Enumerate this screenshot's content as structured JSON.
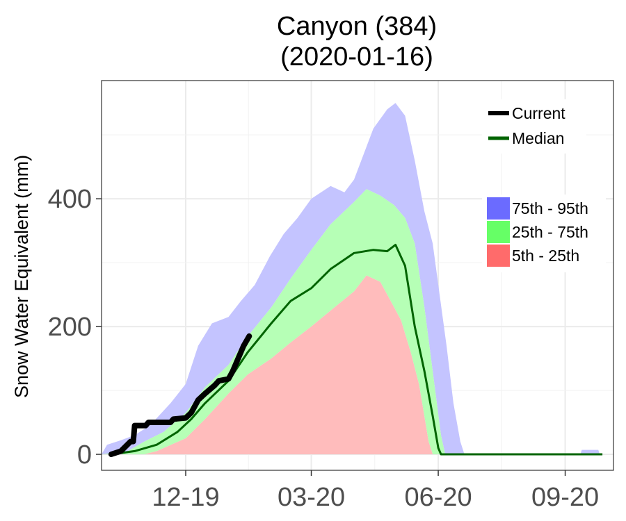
{
  "chart_data": {
    "type": "area",
    "title": "Canyon (384)",
    "subtitle": "(2020-01-16)",
    "xlabel": "",
    "ylabel": "Snow Water Equivalent (mm)",
    "ylim": [
      -25,
      585
    ],
    "xlim": [
      "2019-10-01",
      "2020-10-06"
    ],
    "x_ticks": [
      {
        "date": "2019-12-01",
        "label": "12-19"
      },
      {
        "date": "2020-03-01",
        "label": "03-20"
      },
      {
        "date": "2020-06-01",
        "label": "06-20"
      },
      {
        "date": "2020-09-01",
        "label": "09-20"
      }
    ],
    "y_ticks": [
      0,
      200,
      400
    ],
    "grid": true,
    "legend_placement": "top-right",
    "legend_lines": [
      {
        "name": "Current",
        "color": "#000000"
      },
      {
        "name": "Median",
        "color": "#006400"
      }
    ],
    "legend_fills": [
      {
        "name": "75th - 95th",
        "color": "#6b6bff"
      },
      {
        "name": "25th - 75th",
        "color": "#66ff66"
      },
      {
        "name": "5th - 25th",
        "color": "#ff6b6b"
      }
    ],
    "colors": {
      "p75_95": "#c4c4ff",
      "p25_75": "#b6ffb6",
      "p5_25": "#ffbcbc",
      "median": "#006400",
      "current": "#000000"
    },
    "p95": [
      [
        "2019-10-01",
        0
      ],
      [
        "2019-10-05",
        15
      ],
      [
        "2019-10-15",
        22
      ],
      [
        "2019-10-25",
        30
      ],
      [
        "2019-11-05",
        45
      ],
      [
        "2019-11-20",
        80
      ],
      [
        "2019-12-01",
        110
      ],
      [
        "2019-12-10",
        170
      ],
      [
        "2019-12-20",
        205
      ],
      [
        "2020-01-01",
        215
      ],
      [
        "2020-01-10",
        240
      ],
      [
        "2020-01-20",
        265
      ],
      [
        "2020-01-31",
        310
      ],
      [
        "2020-02-10",
        345
      ],
      [
        "2020-02-20",
        370
      ],
      [
        "2020-03-01",
        400
      ],
      [
        "2020-03-15",
        420
      ],
      [
        "2020-03-25",
        410
      ],
      [
        "2020-04-01",
        430
      ],
      [
        "2020-04-08",
        470
      ],
      [
        "2020-04-15",
        510
      ],
      [
        "2020-04-25",
        540
      ],
      [
        "2020-05-01",
        550
      ],
      [
        "2020-05-08",
        530
      ],
      [
        "2020-05-15",
        460
      ],
      [
        "2020-05-22",
        380
      ],
      [
        "2020-05-28",
        330
      ],
      [
        "2020-06-02",
        250
      ],
      [
        "2020-06-07",
        170
      ],
      [
        "2020-06-12",
        80
      ],
      [
        "2020-06-17",
        20
      ],
      [
        "2020-06-20",
        0
      ],
      [
        "2020-09-12",
        0
      ],
      [
        "2020-09-13",
        7
      ],
      [
        "2020-09-25",
        7
      ],
      [
        "2020-09-26",
        0
      ]
    ],
    "p75": [
      [
        "2019-10-01",
        0
      ],
      [
        "2019-10-20",
        5
      ],
      [
        "2019-11-01",
        20
      ],
      [
        "2019-11-15",
        35
      ],
      [
        "2019-12-01",
        65
      ],
      [
        "2019-12-15",
        105
      ],
      [
        "2020-01-01",
        140
      ],
      [
        "2020-01-15",
        185
      ],
      [
        "2020-02-01",
        230
      ],
      [
        "2020-02-15",
        275
      ],
      [
        "2020-03-01",
        320
      ],
      [
        "2020-03-15",
        360
      ],
      [
        "2020-04-01",
        395
      ],
      [
        "2020-04-10",
        415
      ],
      [
        "2020-04-20",
        405
      ],
      [
        "2020-04-30",
        390
      ],
      [
        "2020-05-08",
        370
      ],
      [
        "2020-05-15",
        330
      ],
      [
        "2020-05-22",
        230
      ],
      [
        "2020-05-28",
        130
      ],
      [
        "2020-06-03",
        30
      ],
      [
        "2020-06-06",
        0
      ]
    ],
    "p25": [
      [
        "2019-10-01",
        0
      ],
      [
        "2019-11-01",
        0
      ],
      [
        "2019-11-10",
        5
      ],
      [
        "2019-12-01",
        25
      ],
      [
        "2019-12-15",
        55
      ],
      [
        "2020-01-01",
        95
      ],
      [
        "2020-01-15",
        125
      ],
      [
        "2020-02-01",
        150
      ],
      [
        "2020-02-15",
        175
      ],
      [
        "2020-03-01",
        200
      ],
      [
        "2020-03-15",
        225
      ],
      [
        "2020-04-01",
        255
      ],
      [
        "2020-04-10",
        280
      ],
      [
        "2020-04-20",
        270
      ],
      [
        "2020-04-25",
        250
      ],
      [
        "2020-05-05",
        210
      ],
      [
        "2020-05-12",
        160
      ],
      [
        "2020-05-18",
        110
      ],
      [
        "2020-05-25",
        20
      ],
      [
        "2020-05-28",
        0
      ]
    ],
    "p5": [
      [
        "2019-10-01",
        0
      ],
      [
        "2020-05-28",
        0
      ]
    ],
    "median": [
      [
        "2019-10-08",
        0
      ],
      [
        "2019-10-25",
        5
      ],
      [
        "2019-11-10",
        15
      ],
      [
        "2019-11-25",
        35
      ],
      [
        "2019-12-05",
        55
      ],
      [
        "2019-12-15",
        80
      ],
      [
        "2020-01-01",
        115
      ],
      [
        "2020-01-15",
        160
      ],
      [
        "2020-02-01",
        205
      ],
      [
        "2020-02-15",
        240
      ],
      [
        "2020-03-01",
        260
      ],
      [
        "2020-03-15",
        290
      ],
      [
        "2020-04-01",
        315
      ],
      [
        "2020-04-15",
        320
      ],
      [
        "2020-04-25",
        318
      ],
      [
        "2020-05-01",
        328
      ],
      [
        "2020-05-08",
        295
      ],
      [
        "2020-05-15",
        200
      ],
      [
        "2020-05-22",
        130
      ],
      [
        "2020-05-28",
        60
      ],
      [
        "2020-06-01",
        10
      ],
      [
        "2020-06-03",
        0
      ],
      [
        "2020-09-28",
        0
      ]
    ],
    "current": [
      [
        "2019-10-08",
        0
      ],
      [
        "2019-10-15",
        5
      ],
      [
        "2019-10-22",
        20
      ],
      [
        "2019-10-24",
        20
      ],
      [
        "2019-10-25",
        45
      ],
      [
        "2019-11-02",
        45
      ],
      [
        "2019-11-04",
        50
      ],
      [
        "2019-11-20",
        50
      ],
      [
        "2019-11-22",
        55
      ],
      [
        "2019-12-01",
        57
      ],
      [
        "2019-12-05",
        65
      ],
      [
        "2019-12-10",
        85
      ],
      [
        "2019-12-15",
        95
      ],
      [
        "2019-12-22",
        108
      ],
      [
        "2019-12-25",
        115
      ],
      [
        "2020-01-01",
        118
      ],
      [
        "2020-01-04",
        130
      ],
      [
        "2020-01-08",
        150
      ],
      [
        "2020-01-12",
        170
      ],
      [
        "2020-01-16",
        185
      ]
    ]
  }
}
